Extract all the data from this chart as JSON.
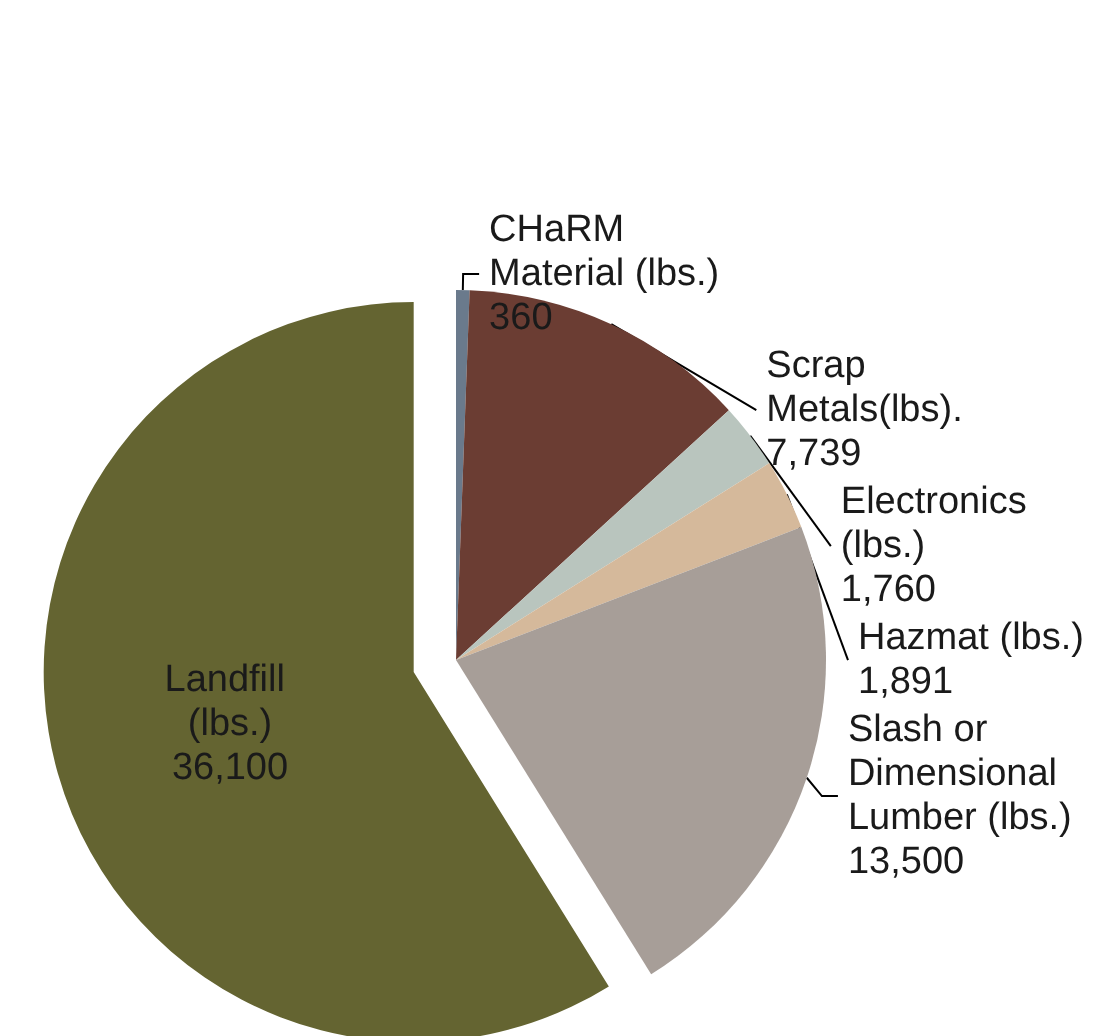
{
  "chart_data": {
    "type": "pie",
    "categories": [
      "CHaRM Material (lbs.)",
      "Scrap Metals(lbs).",
      "Electronics (lbs.)",
      "Hazmat (lbs.)",
      "Slash or Dimensional Lumber (lbs.)",
      "Landfill (lbs.)"
    ],
    "values": [
      360,
      7739,
      1760,
      1891,
      13500,
      36100
    ],
    "value_labels": [
      "360",
      "7,739",
      "1,760",
      "1,891",
      "13,500",
      "36,100"
    ],
    "colors": [
      "#6a7a8c",
      "#6b3d33",
      "#b9c5be",
      "#d5b99b",
      "#a79e98",
      "#646431"
    ]
  }
}
